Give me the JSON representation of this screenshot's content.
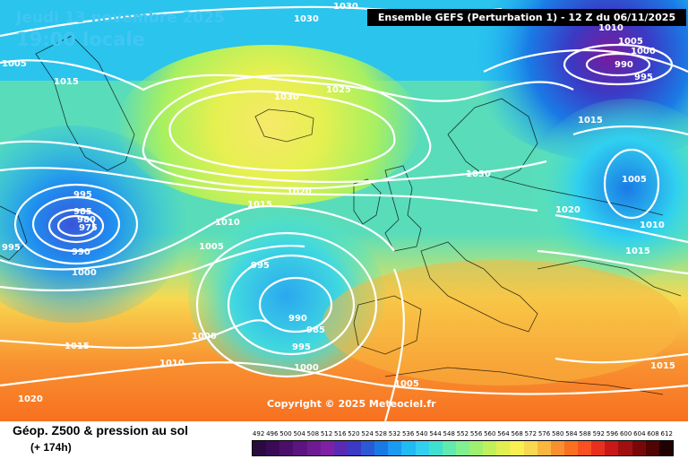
{
  "header": {
    "date": "Jeudi 13 novembre 2025",
    "time": "19:00 locale",
    "model": "Ensemble GEFS  (Perturbation 1)  -  12 Z du 06/11/2025"
  },
  "copyright": "Copyright © 2025 Meteociel.fr",
  "footer": {
    "caption": "Géop. Z500 & pression au sol",
    "lead": "(+ 174h)"
  },
  "legend": {
    "values": [
      "492",
      "496",
      "500",
      "504",
      "508",
      "512",
      "516",
      "520",
      "524",
      "528",
      "532",
      "536",
      "540",
      "544",
      "548",
      "552",
      "556",
      "560",
      "564",
      "568",
      "572",
      "576",
      "580",
      "584",
      "588",
      "592",
      "596",
      "600",
      "604",
      "608",
      "612"
    ],
    "colors": [
      "#2a0a3f",
      "#3a0a55",
      "#4b0f6a",
      "#5c1480",
      "#6e1a92",
      "#7f20a5",
      "#5a2ab5",
      "#3a3ac5",
      "#2a5ad5",
      "#1a7ae5",
      "#1a9af0",
      "#20baf5",
      "#30d0f0",
      "#40e0d0",
      "#60eab0",
      "#80f090",
      "#a0f070",
      "#c0f05a",
      "#e0f050",
      "#f8f050",
      "#f8d850",
      "#f8b840",
      "#f89030",
      "#f87020",
      "#f85020",
      "#e83020",
      "#c81818",
      "#a01010",
      "#780808",
      "#500404",
      "#200000"
    ]
  },
  "isobars": [
    {
      "label": "1030",
      "type": "contour"
    },
    {
      "label": "1030",
      "type": "contour"
    },
    {
      "label": "1005",
      "type": "contour"
    },
    {
      "label": "1015",
      "type": "contour"
    },
    {
      "label": "1030",
      "type": "contour"
    },
    {
      "label": "1025",
      "type": "contour"
    },
    {
      "label": "1010",
      "type": "contour"
    },
    {
      "label": "1005",
      "type": "contour"
    },
    {
      "label": "1000",
      "type": "contour"
    },
    {
      "label": "990",
      "type": "contour"
    },
    {
      "label": "995",
      "type": "contour"
    },
    {
      "label": "1015",
      "type": "contour"
    },
    {
      "label": "1030",
      "type": "contour"
    },
    {
      "label": "1005",
      "type": "contour"
    },
    {
      "label": "1020",
      "type": "contour"
    },
    {
      "label": "1010",
      "type": "contour"
    },
    {
      "label": "1015",
      "type": "contour"
    },
    {
      "label": "995",
      "type": "contour"
    },
    {
      "label": "985",
      "type": "contour"
    },
    {
      "label": "980",
      "type": "contour"
    },
    {
      "label": "975",
      "type": "contour"
    },
    {
      "label": "990",
      "type": "contour"
    },
    {
      "label": "1000",
      "type": "contour"
    },
    {
      "label": "995",
      "type": "contour"
    },
    {
      "label": "1020",
      "type": "contour"
    },
    {
      "label": "1015",
      "type": "contour"
    },
    {
      "label": "1010",
      "type": "contour"
    },
    {
      "label": "1005",
      "type": "contour"
    },
    {
      "label": "995",
      "type": "contour"
    },
    {
      "label": "990",
      "type": "contour"
    },
    {
      "label": "985",
      "type": "contour"
    },
    {
      "label": "995",
      "type": "contour"
    },
    {
      "label": "1000",
      "type": "contour"
    },
    {
      "label": "1000",
      "type": "contour"
    },
    {
      "label": "1015",
      "type": "contour"
    },
    {
      "label": "1010",
      "type": "contour"
    },
    {
      "label": "1020",
      "type": "contour"
    },
    {
      "label": "1005",
      "type": "contour"
    },
    {
      "label": "1015",
      "type": "contour"
    }
  ]
}
